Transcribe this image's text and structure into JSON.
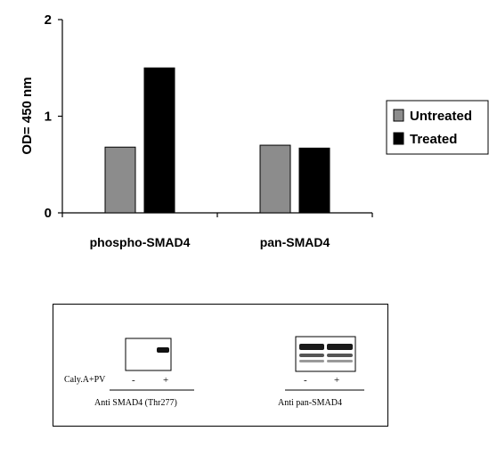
{
  "chart_data": {
    "type": "bar",
    "categories": [
      "phospho-SMAD4",
      "pan-SMAD4"
    ],
    "series": [
      {
        "name": "Untreated",
        "values": [
          0.68,
          0.7
        ],
        "color": "#8c8c8c"
      },
      {
        "name": "Treated",
        "values": [
          1.5,
          0.67
        ],
        "color": "#000000"
      }
    ],
    "ylabel": "OD= 450 nm",
    "ylim": [
      0,
      2
    ],
    "yticks": [
      0,
      1,
      2
    ],
    "legend_position": "right",
    "grid": false
  },
  "blot": {
    "treatment_label": "Caly.A+PV",
    "lanes": [
      {
        "minus": "-",
        "plus": "+",
        "antibody": "Anti SMAD4 (Thr277)"
      },
      {
        "minus": "-",
        "plus": "+",
        "antibody": "Anti pan-SMAD4"
      }
    ]
  }
}
